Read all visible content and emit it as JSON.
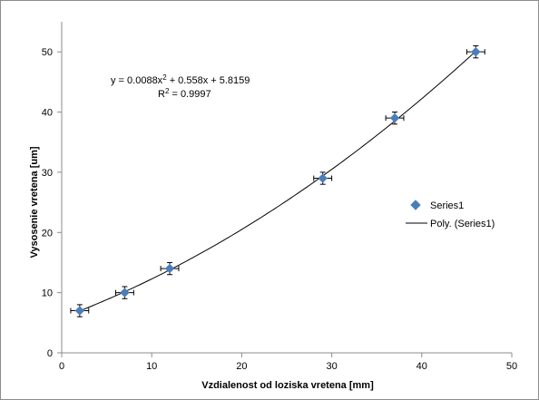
{
  "chart_data": {
    "type": "scatter",
    "title": "",
    "xlabel": "Vzdialenost od loziska vretena [mm]",
    "ylabel": "Vysosenie vretena [um]",
    "xlim": [
      0,
      50
    ],
    "ylim": [
      0,
      55
    ],
    "xticks": [
      0,
      10,
      20,
      30,
      40,
      50
    ],
    "yticks": [
      0,
      10,
      20,
      30,
      40,
      50
    ],
    "grid": false,
    "legend_placement": "right",
    "series": [
      {
        "name": "Series1",
        "marker": "diamond",
        "color": "#4a7ebb",
        "x": [
          2,
          7,
          12,
          29,
          37,
          46
        ],
        "y": [
          7,
          10,
          14,
          29,
          39,
          50
        ],
        "x_error": 1,
        "y_error": 1
      }
    ],
    "trendline": {
      "name": "Poly. (Series1)",
      "type": "polynomial",
      "coefficients": {
        "a": 0.0088,
        "b": 0.558,
        "c": 5.8159
      },
      "color": "#000000"
    },
    "annotations": {
      "equation_parts": [
        "y = 0.0088x",
        "2",
        " + 0.558x + 5.8159"
      ],
      "r2_parts": [
        "R",
        "2",
        " = 0.9997"
      ]
    }
  }
}
